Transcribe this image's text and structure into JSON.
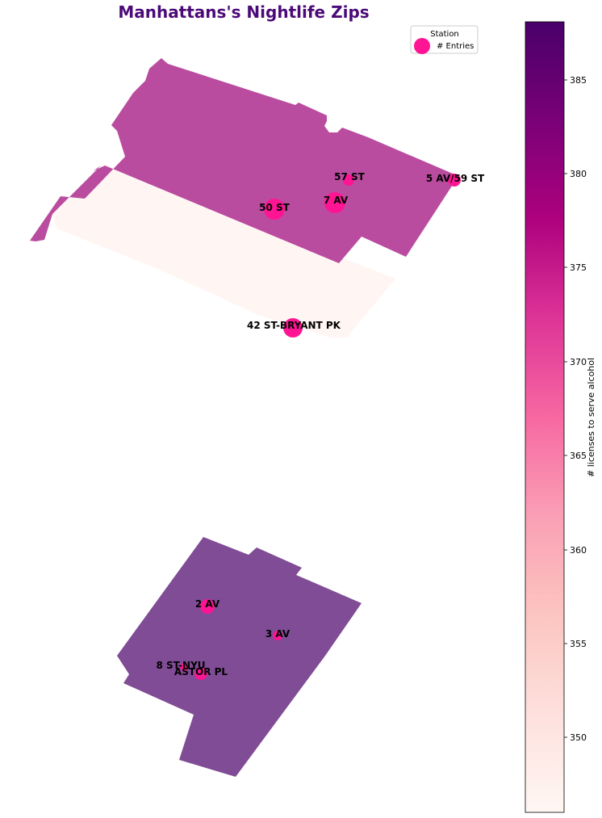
{
  "title": "Manhattans's Nightlife Zips",
  "title_color": "#4b0a78",
  "legend": {
    "title": "Station",
    "entry_label": "# Entries",
    "marker_color": "#ff1493"
  },
  "colorbar": {
    "label": "# licenses to serve alcohol",
    "vmin": 346,
    "vmax": 388,
    "ticks": [
      "350",
      "355",
      "360",
      "365",
      "370",
      "375",
      "380",
      "385"
    ],
    "colormap": "RdPu"
  },
  "zips": [
    {
      "id": "upper",
      "licenses": 375
    },
    {
      "id": "middle",
      "licenses": 346
    },
    {
      "id": "lower",
      "licenses": 388
    }
  ],
  "stations": [
    {
      "name": "57 ST"
    },
    {
      "name": "5 AV/59 ST"
    },
    {
      "name": "7 AV"
    },
    {
      "name": "50 ST"
    },
    {
      "name": "42 ST-BRYANT PK"
    },
    {
      "name": "2 AV"
    },
    {
      "name": "3 AV"
    },
    {
      "name": "8 ST-NYU"
    },
    {
      "name": "ASTOR PL"
    }
  ]
}
